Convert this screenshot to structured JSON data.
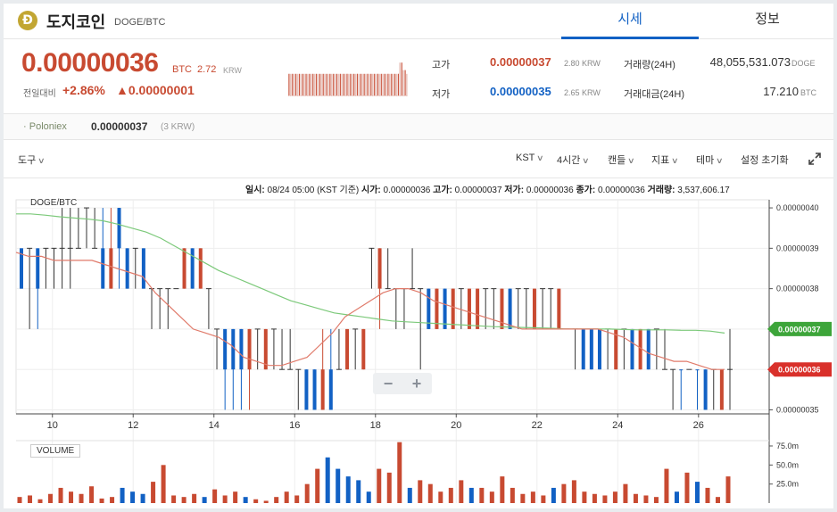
{
  "coin": {
    "logo_letter": "Ð",
    "name": "도지코인",
    "pair": "DOGE/BTC"
  },
  "tabs": [
    {
      "label": "시세",
      "active": true
    },
    {
      "label": "정보",
      "active": false
    }
  ],
  "price": {
    "current": "0.00000036",
    "unit": "BTC",
    "krw": "2.72",
    "krw_unit": "KRW",
    "change_label": "전일대비",
    "change_pct": "+2.86%",
    "change_abs": "▲0.00000001"
  },
  "stats": {
    "high_label": "고가",
    "high_value": "0.00000037",
    "high_krw": "2.80",
    "low_label": "저가",
    "low_value": "0.00000035",
    "low_krw": "2.65",
    "krw_unit": "KRW",
    "volume_label": "거래량(24H)",
    "volume_value": "48,055,531.073",
    "volume_unit": "DOGE",
    "amount_label": "거래대금(24H)",
    "amount_value": "17.210",
    "amount_unit": "BTC"
  },
  "exchange": {
    "name": "Poloniex",
    "price": "0.00000037",
    "krw": "(3 KRW)"
  },
  "toolbar": {
    "tools": "도구",
    "timezone": "KST",
    "interval": "4시간",
    "candle": "캔들",
    "indicator": "지표",
    "theme": "테마",
    "reset": "설정 초기화"
  },
  "ohlc_line": {
    "date_label": "일시:",
    "date_value": "08/24 05:00 (KST 기준)",
    "open_label": "시가:",
    "open_value": "0.00000036",
    "high_label": "고가:",
    "high_value": "0.00000037",
    "low_label": "저가:",
    "low_value": "0.00000036",
    "close_label": "종가:",
    "close_value": "0.00000036",
    "vol_label": "거래량:",
    "vol_value": "3,537,606.17"
  },
  "chart_data": {
    "type": "candlestick",
    "pair_label": "DOGE/BTC",
    "volume_label": "VOLUME",
    "y_ticks": [
      "0.00000040",
      "0.00000039",
      "0.00000038",
      "0.00000037",
      "0.00000036",
      "0.00000035"
    ],
    "y_values": [
      40,
      39,
      38,
      37,
      36,
      35
    ],
    "ylim": [
      34.9,
      40.2
    ],
    "x_ticks": [
      "10",
      "12",
      "14",
      "16",
      "18",
      "20",
      "22",
      "24",
      "26"
    ],
    "x_tick_values": [
      10,
      12,
      14,
      16,
      18,
      20,
      22,
      24,
      26
    ],
    "xlim": [
      9.1,
      27.75
    ],
    "current_tag_green": "0.00000037",
    "current_tag_red": "0.00000036",
    "vol_ticks": [
      "75.0m",
      "50.0m",
      "25.0m"
    ],
    "vol_tick_values": [
      75,
      50,
      25
    ],
    "vol_max": 82,
    "colors": {
      "up": "#c84a31",
      "down": "#1261c4",
      "ma_fast": "#e07a6a",
      "ma_slow": "#7cc97a",
      "tag_green": "#3da53a",
      "tag_red": "#d9302a"
    },
    "candles": [
      [
        39,
        38,
        39,
        38,
        "down"
      ],
      [
        39,
        38,
        39,
        37,
        "flat"
      ],
      [
        39,
        38,
        39,
        37,
        "down"
      ],
      [
        39,
        38,
        39,
        38,
        "flat"
      ],
      [
        39,
        38,
        39,
        38,
        "flat"
      ],
      [
        39,
        38,
        40,
        38,
        "flat"
      ],
      [
        39,
        38,
        40,
        38,
        "flat"
      ],
      [
        39,
        39,
        40,
        39,
        "flat"
      ],
      [
        40,
        39,
        40,
        39,
        "flat"
      ],
      [
        39,
        39,
        40,
        39,
        "flat"
      ],
      [
        39,
        38,
        40,
        38,
        "down"
      ],
      [
        38,
        39,
        40,
        38,
        "up"
      ],
      [
        40,
        39,
        40,
        38,
        "down"
      ],
      [
        39,
        38,
        39,
        38,
        "down"
      ],
      [
        39,
        38,
        39,
        38,
        "flat"
      ],
      [
        39,
        38,
        39,
        38,
        "down"
      ],
      [
        38,
        38,
        38,
        37,
        "flat"
      ],
      [
        38,
        38,
        38,
        37,
        "flat"
      ],
      [
        38,
        38,
        38,
        37,
        "flat"
      ],
      [
        38,
        38,
        38,
        38,
        "flat"
      ],
      [
        38,
        39,
        39,
        38,
        "up"
      ],
      [
        39,
        38,
        39,
        38,
        "down"
      ],
      [
        38,
        39,
        39,
        38,
        "up"
      ],
      [
        38,
        37,
        38,
        37,
        "flat"
      ],
      [
        37,
        37,
        37,
        36,
        "flat"
      ],
      [
        37,
        36,
        37,
        35,
        "down"
      ],
      [
        37,
        36,
        37,
        35,
        "down"
      ],
      [
        37,
        36,
        37,
        35,
        "down"
      ],
      [
        36,
        37,
        37,
        35,
        "up"
      ],
      [
        37,
        37,
        37,
        36,
        "flat"
      ],
      [
        36,
        37,
        37,
        36,
        "up"
      ],
      [
        37,
        37,
        37,
        36,
        "flat"
      ],
      [
        36,
        36,
        37,
        36,
        "flat"
      ],
      [
        36,
        36,
        37,
        36,
        "flat"
      ],
      [
        36,
        36,
        36,
        35,
        "flat"
      ],
      [
        36,
        35,
        36,
        35,
        "down"
      ],
      [
        36,
        35,
        36,
        35,
        "down"
      ],
      [
        35,
        36,
        37,
        35,
        "up"
      ],
      [
        36,
        35,
        37,
        35,
        "down"
      ],
      [
        36,
        36,
        37,
        36,
        "flat"
      ],
      [
        36,
        37,
        37,
        36,
        "up"
      ],
      [
        37,
        36,
        37,
        36,
        "flat"
      ],
      [
        36,
        37,
        37,
        36,
        "up"
      ],
      [
        39,
        38,
        39,
        38,
        "flat"
      ],
      [
        38,
        39,
        39,
        37,
        "up"
      ],
      [
        38,
        38,
        39,
        38,
        "flat"
      ],
      [
        38,
        38,
        38,
        37,
        "flat"
      ],
      [
        38,
        38,
        38,
        37,
        "flat"
      ],
      [
        38,
        38,
        39,
        38,
        "flat"
      ],
      [
        38,
        37,
        38,
        36,
        "flat"
      ],
      [
        38,
        37,
        38,
        37,
        "down"
      ],
      [
        37,
        38,
        38,
        37,
        "up"
      ],
      [
        38,
        37,
        38,
        37,
        "down"
      ],
      [
        37,
        38,
        38,
        37,
        "up"
      ],
      [
        38,
        38,
        38,
        37,
        "flat"
      ],
      [
        37,
        38,
        38,
        37,
        "up"
      ],
      [
        37,
        38,
        38,
        37,
        "up"
      ],
      [
        38,
        38,
        38,
        37,
        "flat"
      ],
      [
        38,
        37,
        38,
        37,
        "flat"
      ],
      [
        37,
        38,
        38,
        37,
        "up"
      ],
      [
        38,
        37,
        38,
        37,
        "down"
      ],
      [
        38,
        38,
        38,
        37,
        "flat"
      ],
      [
        38,
        38,
        38,
        37,
        "flat"
      ],
      [
        37,
        38,
        38,
        37,
        "up"
      ],
      [
        38,
        38,
        38,
        37,
        "flat"
      ],
      [
        38,
        38,
        38,
        37,
        "flat"
      ],
      [
        37,
        38,
        38,
        37,
        "up"
      ],
      [
        37,
        37,
        37,
        37,
        "flat"
      ],
      [
        37,
        37,
        37,
        36,
        "flat"
      ],
      [
        37,
        36,
        37,
        36,
        "down"
      ],
      [
        37,
        36,
        37,
        36,
        "down"
      ],
      [
        37,
        36,
        37,
        36,
        "down"
      ],
      [
        37,
        37,
        37,
        36,
        "flat"
      ],
      [
        36,
        37,
        37,
        36,
        "up"
      ],
      [
        37,
        37,
        37,
        36,
        "flat"
      ],
      [
        37,
        36,
        37,
        36,
        "down"
      ],
      [
        36,
        37,
        37,
        36,
        "up"
      ],
      [
        37,
        36,
        37,
        36,
        "down"
      ],
      [
        37,
        36,
        37,
        36,
        "flat"
      ],
      [
        36,
        36,
        37,
        36,
        "flat"
      ],
      [
        36,
        36,
        36,
        35,
        "flat"
      ],
      [
        36,
        36,
        36,
        35,
        "down"
      ],
      [
        36,
        36,
        36,
        36,
        "flat"
      ],
      [
        36,
        36,
        36,
        35,
        "down"
      ],
      [
        36,
        35,
        36,
        35,
        "down"
      ],
      [
        36,
        36,
        36,
        35,
        "flat"
      ],
      [
        35,
        36,
        36,
        35,
        "up"
      ],
      [
        36,
        36,
        37,
        35,
        "flat"
      ]
    ],
    "volumes": [
      [
        8,
        "up"
      ],
      [
        10,
        "up"
      ],
      [
        5,
        "up"
      ],
      [
        12,
        "up"
      ],
      [
        20,
        "up"
      ],
      [
        15,
        "up"
      ],
      [
        12,
        "up"
      ],
      [
        22,
        "up"
      ],
      [
        6,
        "up"
      ],
      [
        8,
        "up"
      ],
      [
        20,
        "down"
      ],
      [
        15,
        "down"
      ],
      [
        12,
        "down"
      ],
      [
        28,
        "up"
      ],
      [
        50,
        "up"
      ],
      [
        10,
        "up"
      ],
      [
        8,
        "up"
      ],
      [
        12,
        "up"
      ],
      [
        8,
        "down"
      ],
      [
        18,
        "up"
      ],
      [
        10,
        "up"
      ],
      [
        15,
        "up"
      ],
      [
        8,
        "down"
      ],
      [
        5,
        "up"
      ],
      [
        3,
        "up"
      ],
      [
        8,
        "up"
      ],
      [
        15,
        "up"
      ],
      [
        10,
        "up"
      ],
      [
        25,
        "up"
      ],
      [
        45,
        "up"
      ],
      [
        60,
        "down"
      ],
      [
        45,
        "down"
      ],
      [
        35,
        "down"
      ],
      [
        30,
        "down"
      ],
      [
        15,
        "down"
      ],
      [
        45,
        "up"
      ],
      [
        40,
        "up"
      ],
      [
        80,
        "up"
      ],
      [
        20,
        "down"
      ],
      [
        30,
        "up"
      ],
      [
        25,
        "up"
      ],
      [
        15,
        "up"
      ],
      [
        20,
        "up"
      ],
      [
        30,
        "up"
      ],
      [
        20,
        "down"
      ],
      [
        20,
        "up"
      ],
      [
        15,
        "up"
      ],
      [
        35,
        "up"
      ],
      [
        20,
        "up"
      ],
      [
        12,
        "up"
      ],
      [
        15,
        "up"
      ],
      [
        10,
        "up"
      ],
      [
        20,
        "down"
      ],
      [
        25,
        "up"
      ],
      [
        30,
        "up"
      ],
      [
        15,
        "up"
      ],
      [
        12,
        "up"
      ],
      [
        10,
        "up"
      ],
      [
        15,
        "up"
      ],
      [
        25,
        "up"
      ],
      [
        12,
        "up"
      ],
      [
        10,
        "up"
      ],
      [
        8,
        "up"
      ],
      [
        45,
        "up"
      ],
      [
        15,
        "down"
      ],
      [
        40,
        "up"
      ],
      [
        28,
        "down"
      ],
      [
        20,
        "up"
      ],
      [
        8,
        "up"
      ],
      [
        35,
        "up"
      ]
    ],
    "ma_fast": [
      38.9,
      38.8,
      38.8,
      38.7,
      38.7,
      38.7,
      38.7,
      38.6,
      38.5,
      38.4,
      38.3,
      37.9,
      37.6,
      37.3,
      37.0,
      36.9,
      36.8,
      36.6,
      36.3,
      36.2,
      36.1,
      36.1,
      36.2,
      36.3,
      36.6,
      36.9,
      37.3,
      37.5,
      37.7,
      37.9,
      38.0,
      38.0,
      37.9,
      37.7,
      37.6,
      37.5,
      37.4,
      37.3,
      37.2,
      37.1,
      37.0,
      37.0,
      37.0,
      37.0,
      37.0,
      37.0,
      37.0,
      36.9,
      36.8,
      36.6,
      36.4,
      36.3,
      36.2,
      36.2,
      36.1,
      36.0,
      36.0
    ],
    "ma_slow": [
      39.85,
      39.85,
      39.82,
      39.78,
      39.75,
      39.72,
      39.68,
      39.6,
      39.5,
      39.4,
      39.25,
      39.05,
      38.85,
      38.65,
      38.45,
      38.3,
      38.15,
      38.0,
      37.85,
      37.7,
      37.6,
      37.5,
      37.4,
      37.35,
      37.3,
      37.25,
      37.2,
      37.18,
      37.16,
      37.14,
      37.12,
      37.1,
      37.08,
      37.06,
      37.05,
      37.04,
      37.03,
      37.02,
      37.0,
      37.0,
      37.0,
      37.0,
      36.99,
      36.98,
      36.98,
      36.98,
      36.97,
      36.97,
      36.95,
      36.9
    ],
    "sparkline": [
      6,
      6,
      6,
      6,
      6,
      6,
      6,
      6,
      6,
      6,
      6,
      6,
      6,
      6,
      6,
      6,
      6,
      6,
      6,
      6,
      6,
      6,
      6,
      6,
      6,
      6,
      6,
      6,
      6,
      6,
      6,
      6,
      6,
      6,
      6,
      6,
      6,
      6,
      6,
      6,
      6,
      6,
      6,
      6,
      6,
      6,
      6,
      6,
      6,
      6,
      6,
      6,
      6,
      6,
      6,
      6,
      6,
      6,
      6,
      6,
      6,
      6,
      6,
      6,
      6,
      9,
      9,
      7,
      7,
      6
    ]
  }
}
